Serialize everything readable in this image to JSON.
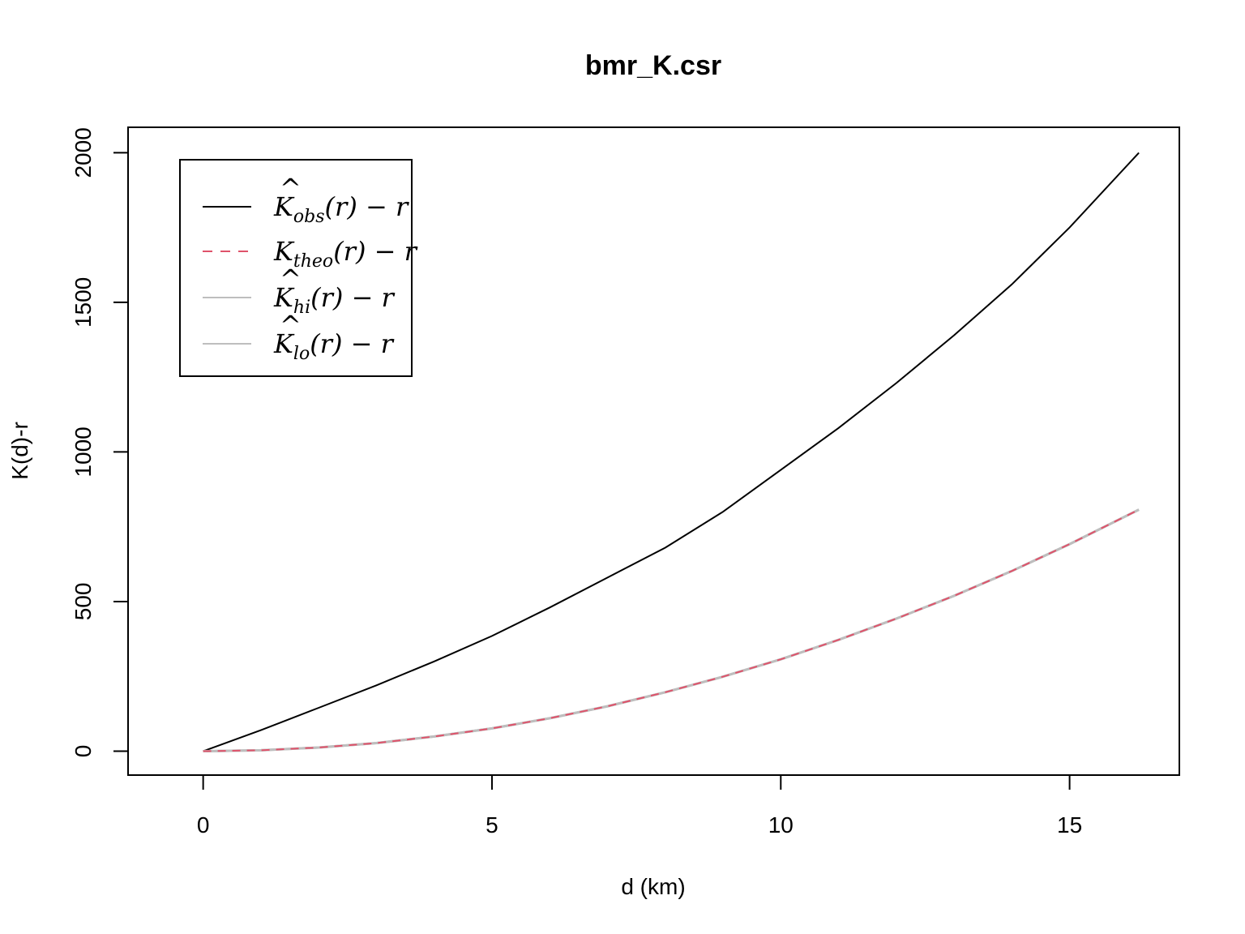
{
  "chart_data": {
    "type": "line",
    "title": "bmr_K.csr",
    "xlabel": "d (km)",
    "ylabel": "K(d)-r",
    "xlim": [
      -1.3,
      16.9
    ],
    "ylim": [
      -80,
      2085
    ],
    "x_ticks": [
      "0",
      "5",
      "10",
      "15"
    ],
    "y_ticks": [
      "0",
      "500",
      "1000",
      "1500",
      "2000"
    ],
    "legend_position": "top-left",
    "legend": [
      {
        "base": "K",
        "hat": true,
        "sub": "obs",
        "tail": "(r) − r",
        "color": "#000000",
        "dash": "none"
      },
      {
        "base": "K",
        "hat": false,
        "sub": "theo",
        "tail": "(r) − r",
        "color": "#DF536B",
        "dash": "12,10"
      },
      {
        "base": "K",
        "hat": true,
        "sub": "hi",
        "tail": "(r) − r",
        "color": "#BEBEBE",
        "dash": "none"
      },
      {
        "base": "K",
        "hat": true,
        "sub": "lo",
        "tail": "(r) − r",
        "color": "#BEBEBE",
        "dash": "none"
      }
    ],
    "x": [
      0,
      1,
      2,
      3,
      4,
      5,
      6,
      7,
      8,
      9,
      10,
      11,
      12,
      13,
      14,
      15,
      16.2
    ],
    "series": [
      {
        "key": "obs",
        "color": "#000000",
        "dash": "none",
        "width": 2,
        "values": [
          0,
          70,
          145,
          220,
          300,
          385,
          480,
          580,
          680,
          800,
          940,
          1080,
          1230,
          1390,
          1560,
          1750,
          2000
        ]
      },
      {
        "key": "hi",
        "color": "#BEBEBE",
        "dash": "none",
        "width": 3,
        "values": [
          0,
          3,
          12,
          27,
          49,
          76,
          110,
          150,
          197,
          249,
          307,
          372,
          443,
          519,
          602,
          692,
          807
        ]
      },
      {
        "key": "lo",
        "color": "#BEBEBE",
        "dash": "none",
        "width": 3,
        "values": [
          0,
          3,
          12,
          27,
          49,
          76,
          110,
          150,
          197,
          249,
          307,
          372,
          443,
          519,
          602,
          692,
          807
        ]
      },
      {
        "key": "theo",
        "color": "#DF536B",
        "dash": "10,8",
        "width": 2,
        "values": [
          0,
          3,
          12,
          27,
          49,
          76,
          110,
          150,
          197,
          249,
          307,
          372,
          443,
          519,
          602,
          692,
          807
        ]
      }
    ]
  }
}
